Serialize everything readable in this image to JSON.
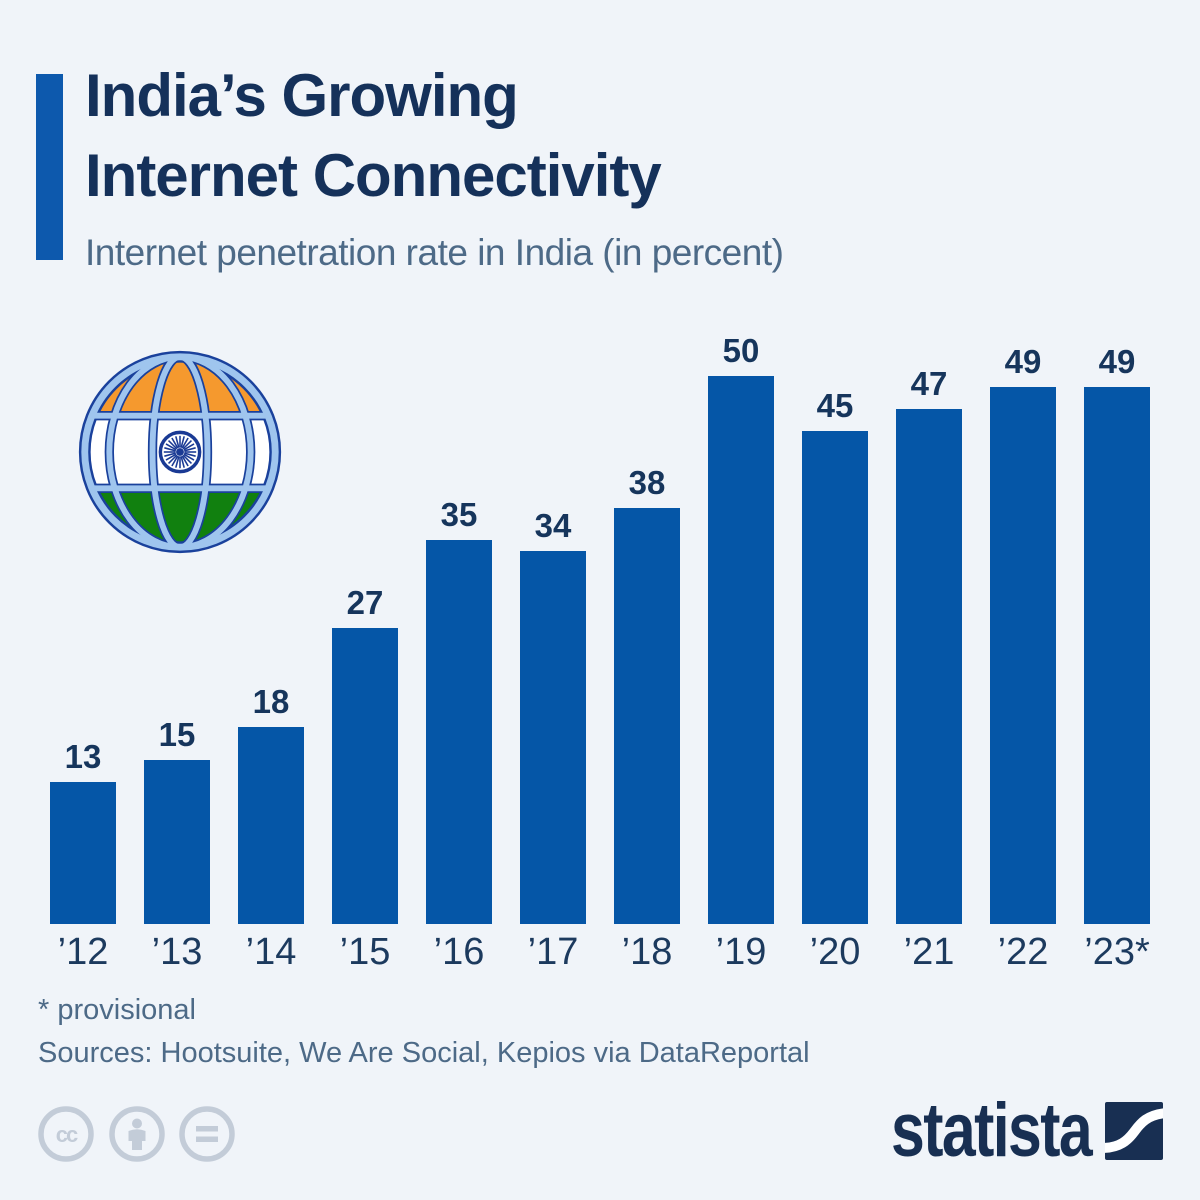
{
  "header": {
    "title_line1": "India’s Growing",
    "title_line2": "Internet Connectivity",
    "subtitle": "Internet penetration rate in India (in percent)"
  },
  "chart_data": {
    "type": "bar",
    "categories": [
      "’12",
      "’13",
      "’14",
      "’15",
      "’16",
      "’17",
      "’18",
      "’19",
      "’20",
      "’21",
      "’22",
      "’23*"
    ],
    "values": [
      13,
      15,
      18,
      27,
      35,
      34,
      38,
      50,
      45,
      47,
      49,
      49
    ],
    "title": "India’s Growing Internet Connectivity",
    "subtitle": "Internet penetration rate in India (in percent)",
    "xlabel": "",
    "ylabel": "",
    "ylim": [
      0,
      50
    ],
    "grid": false,
    "legend": false,
    "value_labels_shown": true,
    "bar_color": "#0556a7"
  },
  "footer": {
    "footnote": "* provisional",
    "sources": "Sources: Hootsuite, We Are Social, Kepios via DataReportal"
  },
  "branding": {
    "logo_text": "statista",
    "license_icons": [
      "cc-icon",
      "cc-by-person-icon",
      "cc-nd-equals-icon"
    ]
  },
  "icons": {
    "globe": "globe-with-india-flag-icon"
  },
  "colors": {
    "background": "#f0f4f9",
    "accent_bar": "#0d59ad",
    "bar": "#0556a7",
    "title": "#15315a",
    "subtitle": "#4d6a87",
    "axis_label": "#1c3a5e",
    "value_label": "#16355c",
    "license_gray": "#c3ccd8",
    "logo_navy": "#182f52",
    "flag_orange": "#f5992e",
    "flag_green": "#11800f",
    "globe_light_blue": "#9fc5ee",
    "globe_outline": "#1a419c",
    "chakra_navy": "#1a3a94"
  }
}
